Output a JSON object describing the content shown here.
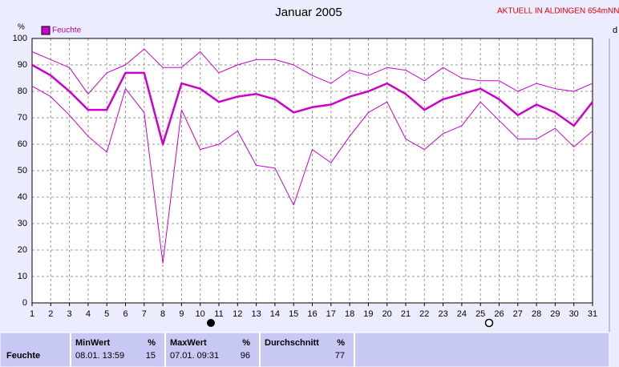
{
  "chart_data": {
    "type": "line",
    "title": "Januar 2005",
    "y_label": "%",
    "x": [
      1,
      2,
      3,
      4,
      5,
      6,
      7,
      8,
      9,
      10,
      11,
      12,
      13,
      14,
      15,
      16,
      17,
      18,
      19,
      20,
      21,
      22,
      23,
      24,
      25,
      26,
      27,
      28,
      29,
      30,
      31
    ],
    "xlim": [
      1,
      31
    ],
    "xticks": [
      1,
      2,
      3,
      4,
      5,
      6,
      7,
      8,
      9,
      10,
      11,
      12,
      13,
      14,
      15,
      16,
      17,
      18,
      19,
      20,
      21,
      22,
      23,
      24,
      25,
      26,
      27,
      28,
      29,
      30,
      31
    ],
    "ylim": [
      0,
      100
    ],
    "yticks": [
      0,
      10,
      20,
      30,
      40,
      50,
      60,
      70,
      80,
      90,
      100
    ],
    "grid": true,
    "series": [
      {
        "name": "Feuchte",
        "color": "#cc00cc",
        "width": 2.5,
        "values": [
          90,
          86,
          80,
          73,
          73,
          87,
          87,
          60,
          83,
          81,
          76,
          78,
          79,
          77,
          72,
          74,
          75,
          78,
          80,
          83,
          79,
          73,
          77,
          79,
          81,
          77,
          71,
          75,
          72,
          67,
          76
        ]
      },
      {
        "color": "#cc00cc",
        "width": 1,
        "values": [
          95,
          92,
          89,
          79,
          87,
          90,
          96,
          89,
          89,
          95,
          87,
          90,
          92,
          92,
          90,
          86,
          83,
          88,
          86,
          89,
          88,
          84,
          89,
          85,
          84,
          84,
          80,
          83,
          81,
          80,
          83
        ]
      },
      {
        "color": "#cc00cc",
        "width": 1,
        "values": [
          82,
          78,
          71,
          63,
          57,
          81,
          72,
          15,
          73,
          58,
          60,
          65,
          52,
          51,
          37,
          58,
          53,
          63,
          72,
          76,
          62,
          58,
          64,
          67,
          76,
          69,
          62,
          62,
          66,
          59,
          65
        ]
      }
    ]
  },
  "header_note": "AKTUELL IN ALDINGEN 654mNN",
  "corner_label": "d",
  "stats_table": {
    "row_label": "Feuchte",
    "columns": [
      {
        "header": "MinWert",
        "unit": "%",
        "time": "08.01.  13:59",
        "value": 15
      },
      {
        "header": "MaxWert",
        "unit": "%",
        "time": "07.01.  09:31",
        "value": 96
      },
      {
        "header": "Durchschnitt",
        "unit": "%",
        "value": 77
      }
    ]
  }
}
